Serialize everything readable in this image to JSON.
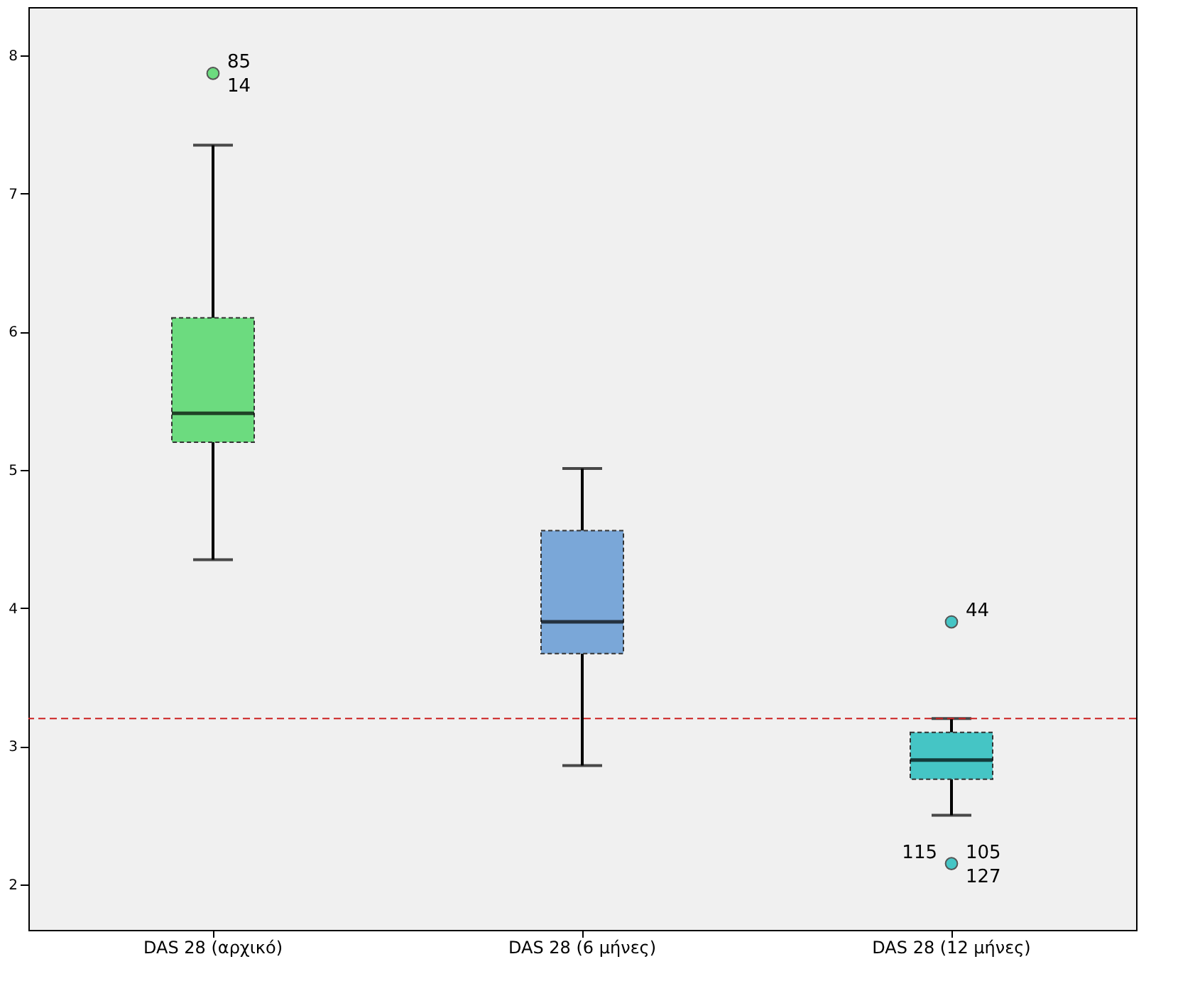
{
  "chart_data": {
    "type": "box",
    "categories": [
      "DAS 28 (αρχικό)",
      "DAS 28 (6 μήνες)",
      "DAS 28 (12 μήνες)"
    ],
    "colors": [
      "#6cdb7f",
      "#7aa7d8",
      "#45c5c5"
    ],
    "boxes": [
      {
        "low": 4.35,
        "q1": 5.2,
        "median": 5.41,
        "q3": 6.1,
        "high": 7.35,
        "outliers": [
          7.87
        ]
      },
      {
        "low": 2.86,
        "q1": 3.67,
        "median": 3.9,
        "q3": 4.56,
        "high": 5.01
      },
      {
        "low": 2.5,
        "q1": 2.76,
        "median": 2.9,
        "q3": 3.1,
        "high": 3.2,
        "outliers": [
          3.9,
          2.15
        ]
      }
    ],
    "annotations": [
      "85",
      "14",
      "44",
      "105",
      "127",
      "115"
    ],
    "ref_lines": [
      {
        "axis": "y",
        "value": 3.2,
        "color": "#cc2222",
        "line_style": "dashed"
      }
    ],
    "ylim": [
      1.67,
      8.35
    ],
    "yticks": [
      2,
      3,
      4,
      5,
      6,
      7,
      8
    ],
    "grid": false
  }
}
